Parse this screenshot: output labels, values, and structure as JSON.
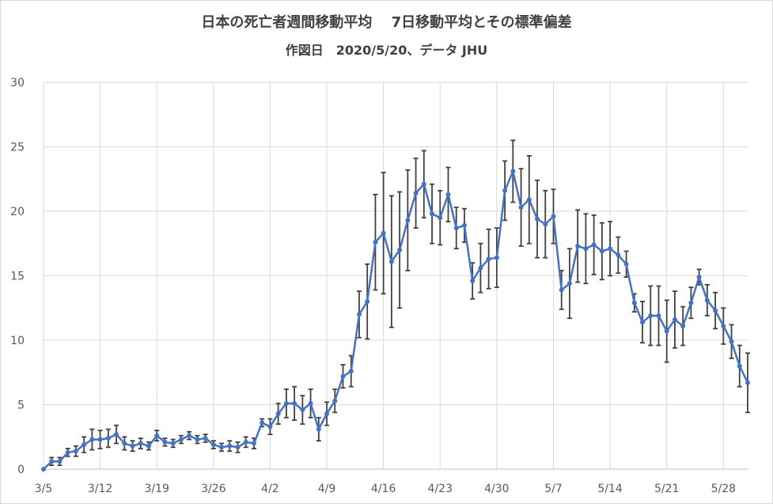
{
  "chart_data": {
    "type": "line",
    "title": "日本の死亡者週間移動平均　 7日移動平均とその標準偏差",
    "subtitle": "作図日　2020/5/20、データ JHU",
    "xlabel": "",
    "ylabel": "",
    "ylim": [
      0,
      30
    ],
    "yticks": [
      0,
      5,
      10,
      15,
      20,
      25,
      30
    ],
    "xtick_labels": [
      "3/5",
      "3/12",
      "3/19",
      "3/26",
      "4/2",
      "4/9",
      "4/16",
      "4/23",
      "4/30",
      "5/7",
      "5/14",
      "5/21",
      "5/28"
    ],
    "grid": true,
    "legend": "none",
    "color": "#4472C4",
    "errorbar_color": "#404040",
    "series": [
      {
        "values": [
          0.0,
          0.6,
          0.6,
          1.3,
          1.4,
          1.9,
          2.3,
          2.3,
          2.4,
          2.7,
          2.0,
          1.8,
          2.0,
          1.8,
          2.6,
          2.1,
          2.0,
          2.3,
          2.6,
          2.3,
          2.4,
          1.9,
          1.7,
          1.8,
          1.7,
          2.1,
          2.0,
          3.6,
          3.3,
          4.3,
          5.1,
          5.1,
          4.6,
          5.1,
          3.1,
          4.3,
          5.3,
          7.2,
          7.6,
          12.0,
          13.0,
          17.6,
          18.3,
          16.1,
          17.0,
          19.3,
          21.4,
          22.1,
          19.8,
          19.5,
          21.3,
          18.7,
          18.9,
          14.6,
          15.6,
          16.3,
          16.4,
          21.6,
          23.1,
          20.3,
          20.9,
          19.4,
          19.0,
          19.6,
          13.9,
          14.4,
          17.3,
          17.1,
          17.4,
          16.9,
          17.1,
          16.6,
          15.9,
          12.9,
          11.4,
          11.9,
          11.9,
          10.7,
          11.6,
          11.1,
          12.9,
          14.9,
          13.1,
          12.3,
          11.1,
          9.9,
          8.0,
          6.7
        ],
        "errors": [
          0.0,
          0.3,
          0.3,
          0.3,
          0.4,
          0.6,
          0.8,
          0.7,
          0.7,
          0.7,
          0.5,
          0.4,
          0.4,
          0.3,
          0.4,
          0.3,
          0.3,
          0.3,
          0.3,
          0.3,
          0.3,
          0.3,
          0.3,
          0.4,
          0.4,
          0.4,
          0.4,
          0.3,
          0.6,
          0.8,
          1.1,
          1.3,
          1.1,
          1.1,
          0.9,
          0.9,
          0.9,
          0.9,
          1.2,
          1.8,
          2.9,
          3.7,
          4.7,
          5.1,
          4.5,
          3.9,
          2.7,
          2.6,
          2.3,
          2.1,
          2.1,
          1.6,
          1.3,
          1.4,
          1.9,
          2.3,
          2.3,
          2.3,
          2.4,
          3.0,
          3.4,
          3.0,
          2.6,
          2.1,
          1.5,
          2.7,
          2.8,
          2.7,
          2.3,
          2.2,
          2.1,
          1.4,
          1.0,
          0.7,
          1.6,
          2.3,
          2.3,
          2.4,
          2.2,
          1.5,
          1.2,
          0.6,
          1.2,
          1.4,
          1.4,
          1.3,
          1.6,
          2.3
        ]
      }
    ]
  }
}
